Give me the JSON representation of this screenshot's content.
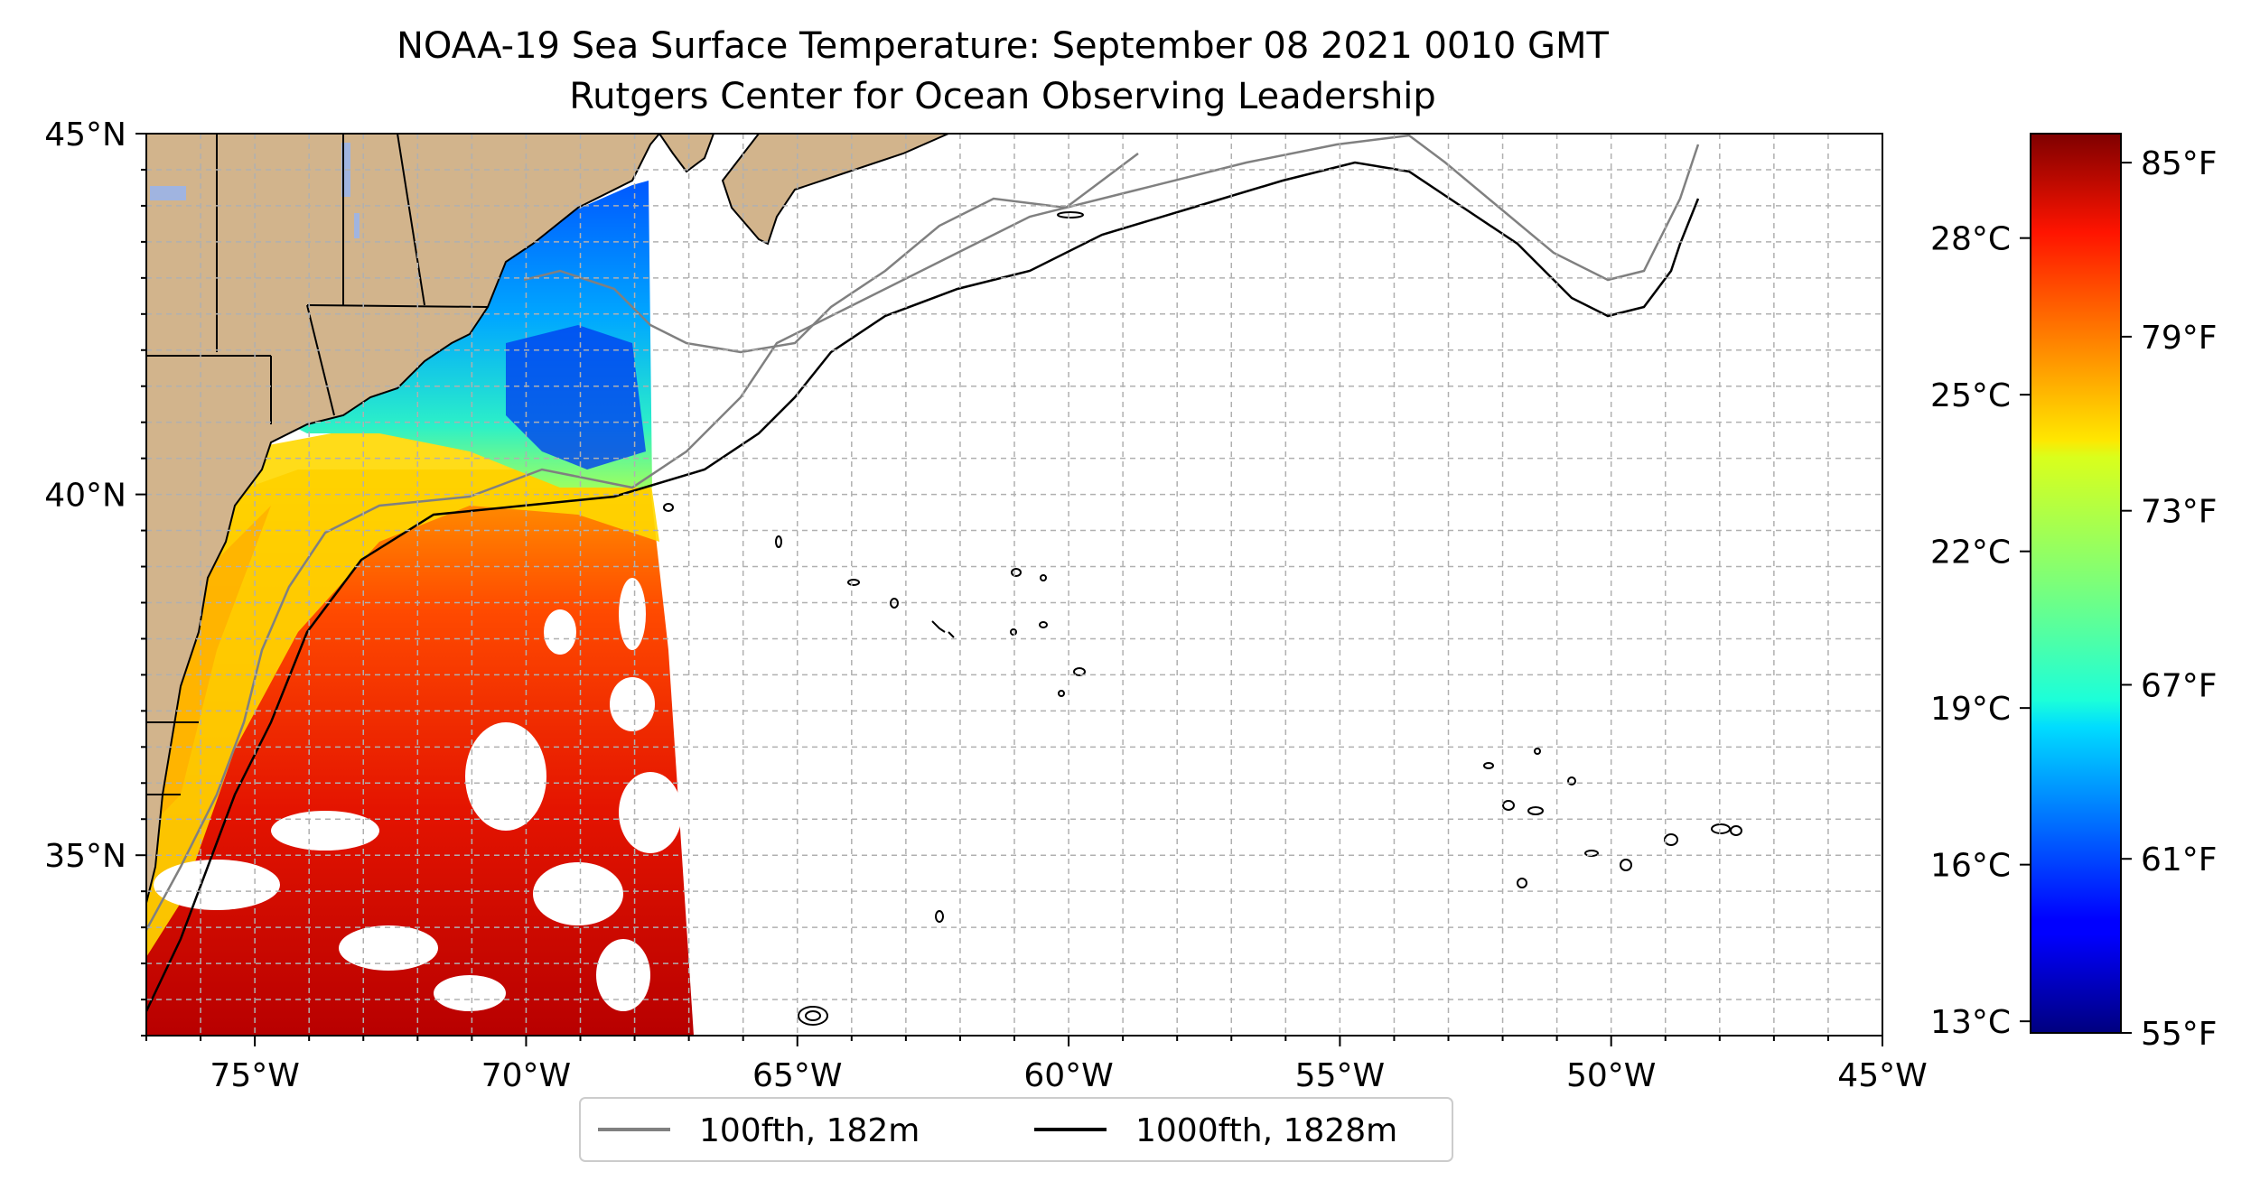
{
  "figure": {
    "title": "NOAA-19 Sea Surface Temperature: September 08 2021 0010 GMT",
    "subtitle": "Rutgers Center for Ocean Observing Leadership"
  },
  "map": {
    "extent": {
      "lon_min": -77,
      "lon_max": -45,
      "lat_min": 32.5,
      "lat_max": 45
    },
    "x_ticks": [
      {
        "lon": -75,
        "label": "75°W"
      },
      {
        "lon": -70,
        "label": "70°W"
      },
      {
        "lon": -65,
        "label": "65°W"
      },
      {
        "lon": -60,
        "label": "60°W"
      },
      {
        "lon": -55,
        "label": "55°W"
      },
      {
        "lon": -50,
        "label": "50°W"
      },
      {
        "lon": -45,
        "label": "45°W"
      }
    ],
    "y_ticks": [
      {
        "lat": 45,
        "label": "45°N"
      },
      {
        "lat": 40,
        "label": "40°N"
      },
      {
        "lat": 35,
        "label": "35°N"
      }
    ],
    "grid": true,
    "land_color": "#d2b48c",
    "lake_color": "#a0b4e0"
  },
  "legend": {
    "placement": "bottom-center",
    "items": [
      {
        "label": "100fth, 182m",
        "color": "#808080"
      },
      {
        "label": "1000fth, 1828m",
        "color": "#000000"
      }
    ]
  },
  "colorbar": {
    "colormap": "jet",
    "range_f": [
      55,
      86
    ],
    "fahrenheit_ticks": [
      {
        "value": 55,
        "label": "55°F"
      },
      {
        "value": 61,
        "label": "61°F"
      },
      {
        "value": 67,
        "label": "67°F"
      },
      {
        "value": 73,
        "label": "73°F"
      },
      {
        "value": 79,
        "label": "79°F"
      },
      {
        "value": 85,
        "label": "85°F"
      }
    ],
    "celsius_ticks": [
      {
        "value": 13,
        "label": "13°C"
      },
      {
        "value": 16,
        "label": "16°C"
      },
      {
        "value": 19,
        "label": "19°C"
      },
      {
        "value": 22,
        "label": "22°C"
      },
      {
        "value": 25,
        "label": "25°C"
      },
      {
        "value": 28,
        "label": "28°C"
      }
    ]
  }
}
